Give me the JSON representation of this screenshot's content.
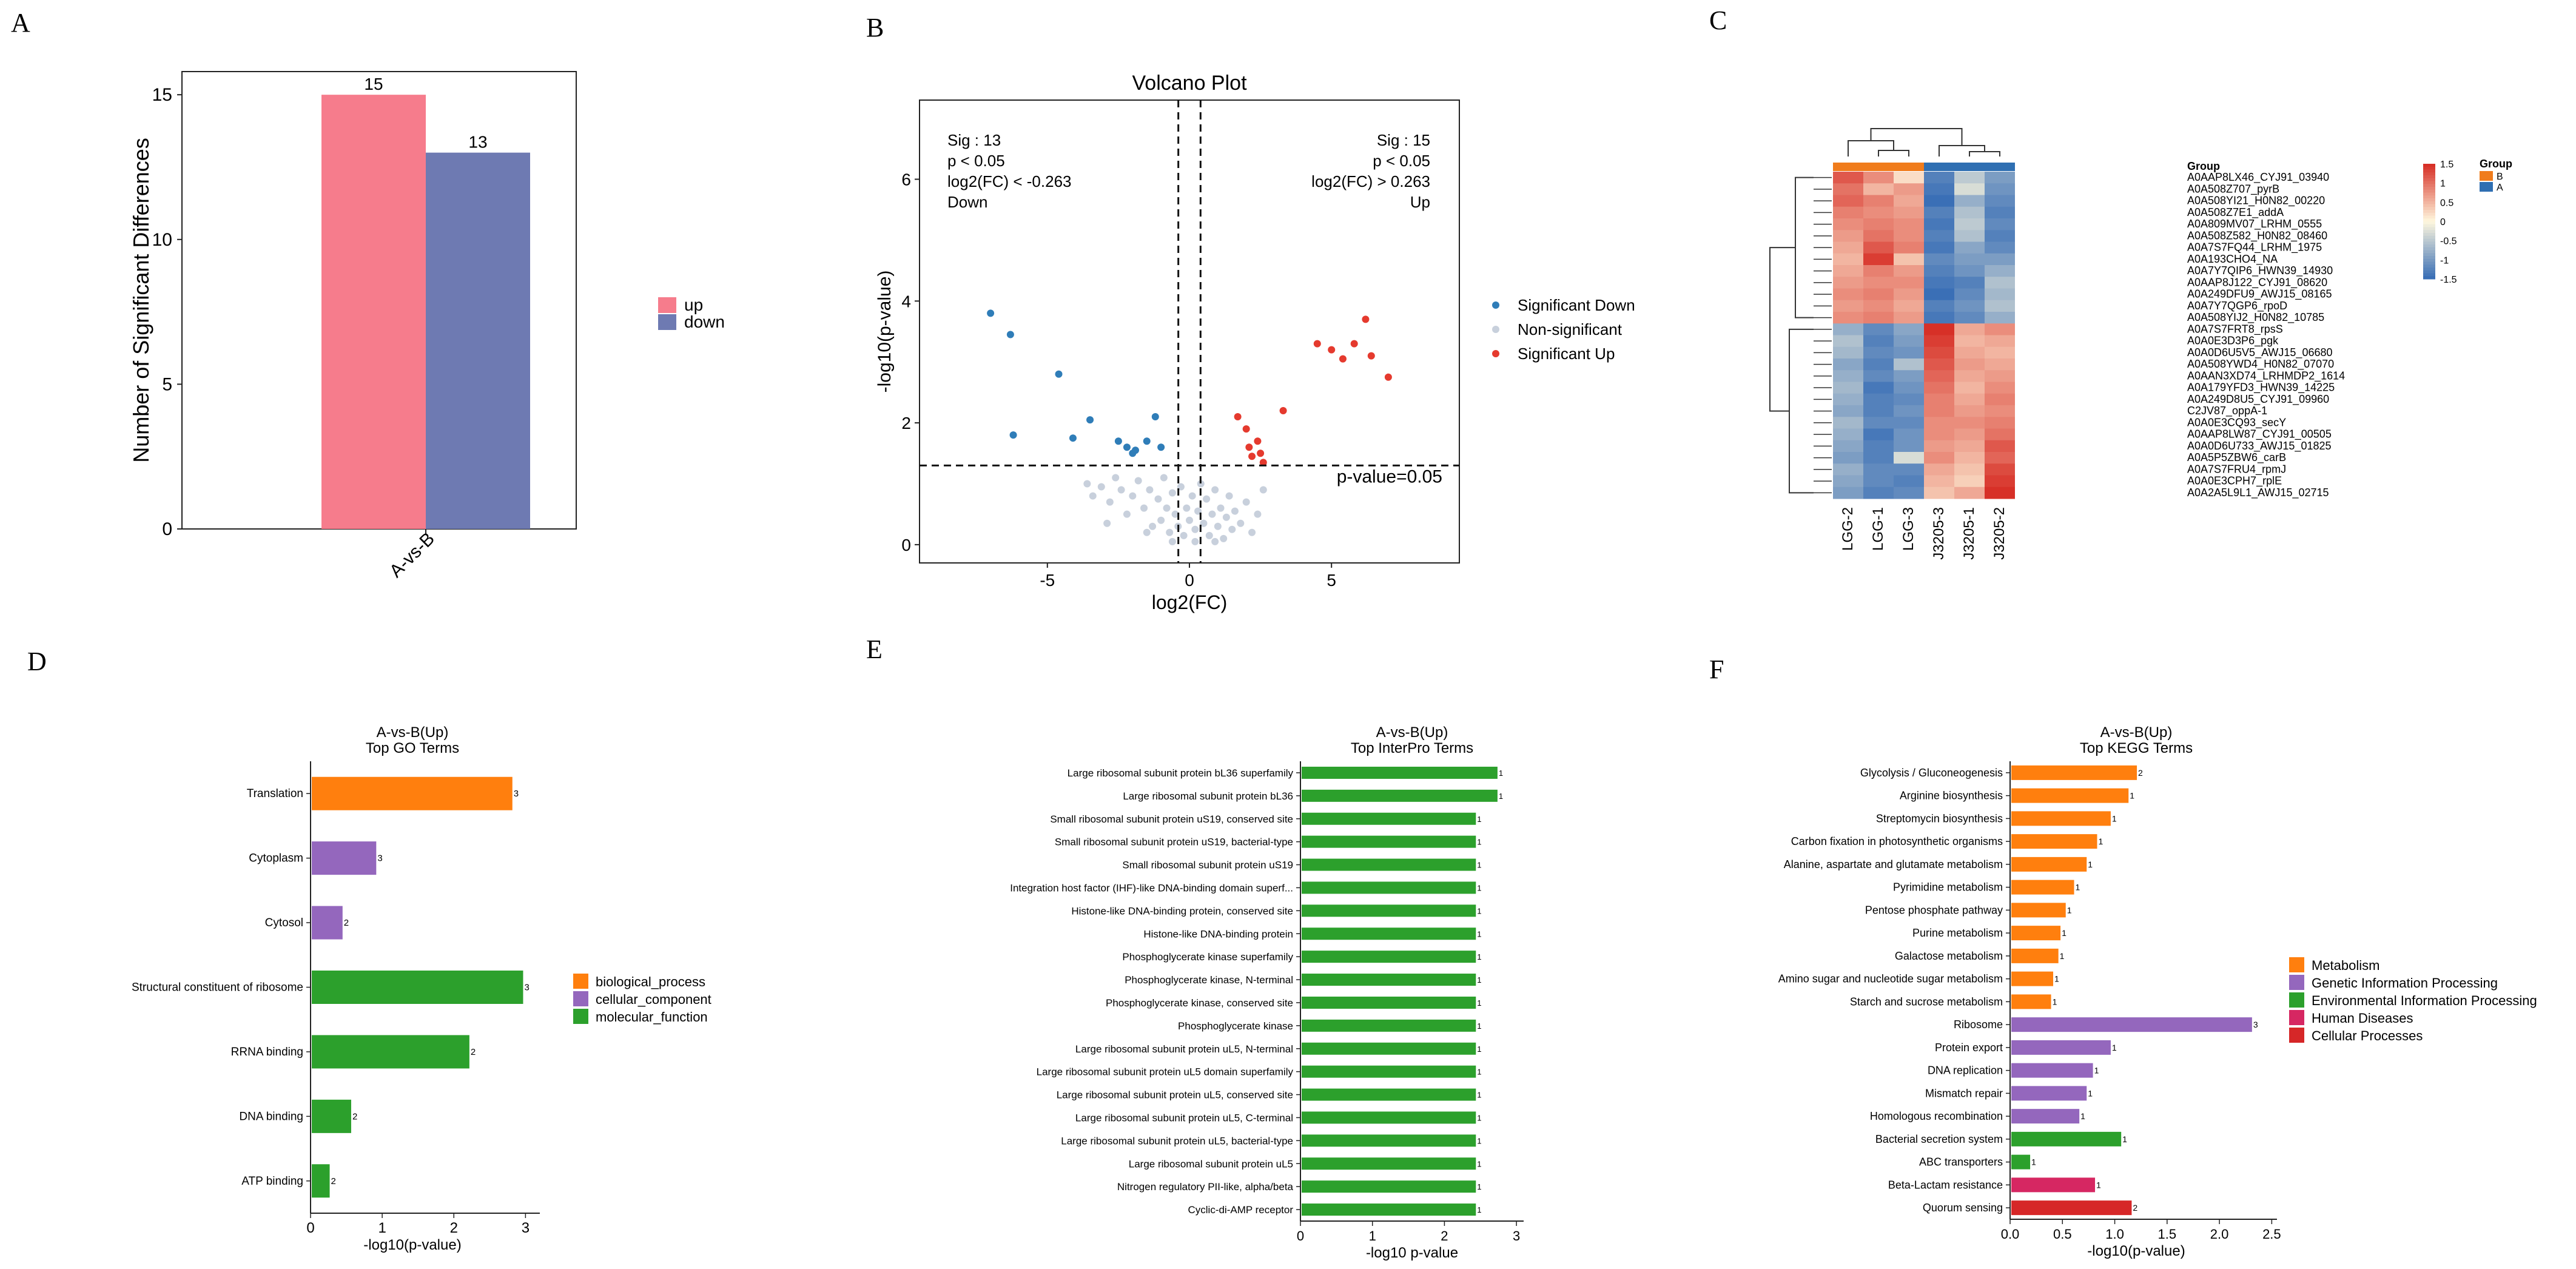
{
  "colors": {
    "up": "#F67C8C",
    "down": "#6E7AB2",
    "sig_down": "#2F7DB8",
    "non_sig": "#C8D0DC",
    "sig_up": "#E53A2E",
    "bp": "#FF7F0E",
    "cc": "#9467BD",
    "mf": "#2CA02C",
    "cat_metabolism": "#FF7F0E",
    "cat_genetic": "#9467BD",
    "cat_env": "#2CA02C",
    "cat_human": "#D62762",
    "cat_cellular": "#D62728",
    "heat_low": "#3A6FB6",
    "heat_mid": "#FFF8DE",
    "heat_high": "#D73027",
    "group_B": "#F07C1C",
    "group_A": "#2F6FB2"
  },
  "chart_data": [
    {
      "panel": "A",
      "type": "bar",
      "categories": [
        "A-vs-B"
      ],
      "series": [
        {
          "name": "up",
          "values": [
            15
          ]
        },
        {
          "name": "down",
          "values": [
            13
          ]
        }
      ],
      "ylabel": "Number of Significant Differences",
      "ylim": [
        0,
        15.8
      ],
      "yticks": [
        "0",
        "5",
        "10",
        "15"
      ],
      "legend": [
        "up",
        "down"
      ]
    },
    {
      "panel": "B",
      "type": "scatter",
      "title": "Volcano Plot",
      "xlabel": "log2(FC)",
      "ylabel": "-log10(p-value)",
      "xlim": [
        -9.5,
        9.5
      ],
      "ylim": [
        -0.3,
        7.3
      ],
      "xticks": [
        "-5",
        "0",
        "5"
      ],
      "yticks": [
        "0",
        "2",
        "4",
        "6"
      ],
      "threshold_label": "p-value=0.05",
      "annot_left": [
        "Sig : 13",
        "p < 0.05",
        "log2(FC) < -0.263",
        "Down"
      ],
      "annot_right": [
        "Sig : 15",
        "p < 0.05",
        "log2(FC) > 0.263",
        "Up"
      ],
      "legend": [
        "Significant Down",
        "Non-significant",
        "Significant Up"
      ],
      "down_points": [
        [
          -7,
          3.8
        ],
        [
          -6.3,
          3.45
        ],
        [
          -6.2,
          1.8
        ],
        [
          -4.6,
          2.8
        ],
        [
          -4.1,
          1.75
        ],
        [
          -3.5,
          2.05
        ],
        [
          -2.5,
          1.7
        ],
        [
          -2.2,
          1.6
        ],
        [
          -2.0,
          1.5
        ],
        [
          -1.9,
          1.55
        ],
        [
          -1.5,
          1.7
        ],
        [
          -1.2,
          2.1
        ],
        [
          -1.0,
          1.6
        ]
      ],
      "up_points": [
        [
          1.7,
          2.1
        ],
        [
          2.0,
          1.9
        ],
        [
          2.1,
          1.6
        ],
        [
          2.2,
          1.45
        ],
        [
          2.4,
          1.7
        ],
        [
          2.5,
          1.5
        ],
        [
          2.6,
          1.35
        ],
        [
          3.3,
          2.2
        ],
        [
          4.5,
          3.3
        ],
        [
          5.0,
          3.2
        ],
        [
          5.4,
          3.05
        ],
        [
          5.8,
          3.3
        ],
        [
          6.2,
          3.7
        ],
        [
          6.4,
          3.1
        ],
        [
          7.0,
          2.75
        ]
      ],
      "non_points": [
        [
          -3.6,
          1.0
        ],
        [
          -3.4,
          0.8
        ],
        [
          -3.1,
          0.95
        ],
        [
          -2.8,
          0.7
        ],
        [
          -2.6,
          1.1
        ],
        [
          -2.4,
          0.9
        ],
        [
          -2.2,
          0.5
        ],
        [
          -2.0,
          0.8
        ],
        [
          -1.8,
          1.05
        ],
        [
          -1.6,
          0.6
        ],
        [
          -1.4,
          0.9
        ],
        [
          -1.3,
          0.3
        ],
        [
          -1.1,
          0.75
        ],
        [
          -1.0,
          0.4
        ],
        [
          -0.9,
          1.1
        ],
        [
          -0.8,
          0.6
        ],
        [
          -0.7,
          0.2
        ],
        [
          -0.6,
          0.85
        ],
        [
          -0.5,
          0.5
        ],
        [
          -0.4,
          0.3
        ],
        [
          -0.3,
          0.95
        ],
        [
          -0.2,
          0.15
        ],
        [
          -0.1,
          0.6
        ],
        [
          0.0,
          0.4
        ],
        [
          0.1,
          0.8
        ],
        [
          0.2,
          0.25
        ],
        [
          0.3,
          0.55
        ],
        [
          0.4,
          1.0
        ],
        [
          0.5,
          0.35
        ],
        [
          0.6,
          0.75
        ],
        [
          0.7,
          0.15
        ],
        [
          0.8,
          0.5
        ],
        [
          0.9,
          0.9
        ],
        [
          1.0,
          0.3
        ],
        [
          1.1,
          0.6
        ],
        [
          1.2,
          0.1
        ],
        [
          1.3,
          0.45
        ],
        [
          1.4,
          0.8
        ],
        [
          1.5,
          0.25
        ],
        [
          1.6,
          0.55
        ],
        [
          1.8,
          0.35
        ],
        [
          2.0,
          0.7
        ],
        [
          2.2,
          0.2
        ],
        [
          2.4,
          0.5
        ],
        [
          2.6,
          0.9
        ],
        [
          -2.9,
          0.35
        ],
        [
          -1.5,
          0.2
        ],
        [
          0.2,
          0.05
        ],
        [
          -0.6,
          0.05
        ],
        [
          0.9,
          0.05
        ]
      ]
    },
    {
      "panel": "C",
      "type": "heatmap",
      "columns": [
        "LGG-2",
        "LGG-1",
        "LGG-3",
        "J3205-3",
        "J3205-1",
        "J3205-2"
      ],
      "column_groups": [
        "B",
        "B",
        "B",
        "A",
        "A",
        "A"
      ],
      "group_row_label": "Group",
      "rows": [
        "A0AAP8LX46_CYJ91_03940",
        "A0A508Z707_pyrB",
        "A0A508YI21_H0N82_00220",
        "A0A508Z7E1_addA",
        "A0A809MV07_LRHM_0555",
        "A0A508Z582_H0N82_08460",
        "A0A7S7FQ44_LRHM_1975",
        "A0A193CHO4_NA",
        "A0A7Y7QIP6_HWN39_14930",
        "A0AAP8J122_CYJ91_08620",
        "A0A249DFU9_AWJ15_08165",
        "A0A7Y7QGP6_rpoD",
        "A0A508YIJ2_H0N82_10785",
        "A0A7S7FRT8_rpsS",
        "A0A0E3D3P6_pgk",
        "A0A0D6U5V5_AWJ15_06680",
        "A0A508YWD4_H0N82_07070",
        "A0AAN3XD74_LRHMDP2_1614",
        "A0A179YFD3_HWN39_14225",
        "A0A249D8U5_CYJ91_09960",
        "C2JV87_oppA-1",
        "A0A0E3CQ93_secY",
        "A0AAP8LW87_CYJ91_00505",
        "A0A0D6U733_AWJ15_01825",
        "A0A5P5ZBW6_carB",
        "A0A7S7FRU4_rpmJ",
        "A0A0E3CPH7_rplE",
        "A0A2A5L9L1_AWJ15_02715"
      ],
      "values": [
        [
          1.2,
          0.8,
          0.2,
          -1.3,
          -0.5,
          -1.0
        ],
        [
          1.0,
          0.5,
          0.7,
          -1.4,
          -0.3,
          -1.1
        ],
        [
          1.1,
          0.9,
          0.6,
          -1.5,
          -0.8,
          -1.2
        ],
        [
          0.9,
          0.8,
          0.7,
          -1.3,
          -0.6,
          -1.3
        ],
        [
          0.8,
          0.9,
          0.8,
          -1.4,
          -0.5,
          -1.2
        ],
        [
          0.7,
          1.0,
          0.8,
          -1.3,
          -0.6,
          -1.3
        ],
        [
          0.6,
          1.2,
          0.9,
          -1.4,
          -0.9,
          -1.2
        ],
        [
          0.5,
          1.4,
          0.4,
          -1.2,
          -1.0,
          -1.0
        ],
        [
          0.6,
          0.9,
          0.7,
          -1.3,
          -1.1,
          -0.8
        ],
        [
          0.7,
          0.8,
          0.8,
          -1.4,
          -1.3,
          -0.6
        ],
        [
          0.8,
          0.9,
          0.7,
          -1.5,
          -1.2,
          -0.7
        ],
        [
          0.7,
          0.8,
          0.6,
          -1.3,
          -1.1,
          -0.6
        ],
        [
          0.8,
          0.9,
          0.7,
          -1.4,
          -1.2,
          -0.8
        ],
        [
          -0.8,
          -1.2,
          -0.9,
          1.5,
          0.6,
          0.8
        ],
        [
          -0.6,
          -1.3,
          -1.0,
          1.4,
          0.5,
          0.6
        ],
        [
          -0.7,
          -1.2,
          -1.1,
          1.3,
          0.6,
          0.5
        ],
        [
          -0.9,
          -1.3,
          -0.6,
          1.2,
          0.7,
          0.6
        ],
        [
          -0.8,
          -1.2,
          -1.0,
          1.1,
          0.6,
          0.7
        ],
        [
          -0.7,
          -1.4,
          -1.1,
          1.0,
          0.5,
          0.8
        ],
        [
          -0.8,
          -1.3,
          -1.2,
          0.9,
          0.6,
          0.9
        ],
        [
          -0.9,
          -1.3,
          -1.1,
          0.9,
          0.7,
          0.8
        ],
        [
          -0.7,
          -1.2,
          -1.2,
          0.8,
          0.8,
          0.9
        ],
        [
          -0.8,
          -1.4,
          -1.1,
          0.8,
          0.7,
          1.0
        ],
        [
          -0.9,
          -1.3,
          -1.1,
          0.7,
          0.6,
          1.2
        ],
        [
          -1.0,
          -1.3,
          -0.3,
          0.8,
          0.5,
          1.1
        ],
        [
          -0.8,
          -1.2,
          -1.2,
          0.6,
          0.4,
          1.3
        ],
        [
          -0.9,
          -1.2,
          -1.3,
          0.5,
          0.3,
          1.4
        ],
        [
          -1.0,
          -1.3,
          -1.2,
          0.4,
          0.6,
          1.5
        ]
      ],
      "color_scale_ticks": [
        "1.5",
        "1",
        "0.5",
        "0",
        "-0.5",
        "-1",
        "-1.5"
      ],
      "legend_title": "Group",
      "legend_items": [
        "B",
        "A"
      ]
    },
    {
      "panel": "D",
      "type": "bar",
      "title": "A-vs-B(Up)",
      "subtitle": "Top GO Terms",
      "xlabel": "-log10(p-value)",
      "xlim": [
        0,
        3.2
      ],
      "xticks": [
        "0",
        "1",
        "2",
        "3"
      ],
      "items": [
        {
          "term": "Translation",
          "value": 2.8,
          "count": "3",
          "cat": "bp"
        },
        {
          "term": "Cytoplasm",
          "value": 0.9,
          "count": "3",
          "cat": "cc"
        },
        {
          "term": "Cytosol",
          "value": 0.43,
          "count": "2",
          "cat": "cc"
        },
        {
          "term": "Structural constituent of ribosome",
          "value": 2.95,
          "count": "3",
          "cat": "mf"
        },
        {
          "term": "RRNA binding",
          "value": 2.2,
          "count": "2",
          "cat": "mf"
        },
        {
          "term": "DNA binding",
          "value": 0.55,
          "count": "2",
          "cat": "mf"
        },
        {
          "term": "ATP binding",
          "value": 0.25,
          "count": "2",
          "cat": "mf"
        }
      ],
      "legend": [
        {
          "label": "biological_process",
          "cat": "bp"
        },
        {
          "label": "cellular_component",
          "cat": "cc"
        },
        {
          "label": "molecular_function",
          "cat": "mf"
        }
      ]
    },
    {
      "panel": "E",
      "type": "bar",
      "title": "A-vs-B(Up)",
      "subtitle": "Top InterPro Terms",
      "xlabel": "-log10 p-value",
      "xlim": [
        0,
        3.1
      ],
      "xticks": [
        "0",
        "1",
        "2",
        "3"
      ],
      "items": [
        {
          "term": "Large ribosomal subunit protein bL36 superfamily",
          "value": 2.72,
          "count": "1"
        },
        {
          "term": "Large ribosomal subunit protein bL36",
          "value": 2.72,
          "count": "1"
        },
        {
          "term": "Small ribosomal subunit protein uS19, conserved site",
          "value": 2.42,
          "count": "1"
        },
        {
          "term": "Small ribosomal subunit protein uS19, bacterial-type",
          "value": 2.42,
          "count": "1"
        },
        {
          "term": "Small ribosomal subunit protein uS19",
          "value": 2.42,
          "count": "1"
        },
        {
          "term": "Integration host factor (IHF)-like DNA-binding domain superf...",
          "value": 2.42,
          "count": "1"
        },
        {
          "term": "Histone-like DNA-binding protein, conserved site",
          "value": 2.42,
          "count": "1"
        },
        {
          "term": "Histone-like DNA-binding protein",
          "value": 2.42,
          "count": "1"
        },
        {
          "term": "Phosphoglycerate kinase superfamily",
          "value": 2.42,
          "count": "1"
        },
        {
          "term": "Phosphoglycerate kinase, N-terminal",
          "value": 2.42,
          "count": "1"
        },
        {
          "term": "Phosphoglycerate kinase, conserved site",
          "value": 2.42,
          "count": "1"
        },
        {
          "term": "Phosphoglycerate kinase",
          "value": 2.42,
          "count": "1"
        },
        {
          "term": "Large ribosomal subunit protein uL5, N-terminal",
          "value": 2.42,
          "count": "1"
        },
        {
          "term": "Large ribosomal subunit protein uL5 domain superfamily",
          "value": 2.42,
          "count": "1"
        },
        {
          "term": "Large ribosomal subunit protein uL5, conserved site",
          "value": 2.42,
          "count": "1"
        },
        {
          "term": "Large ribosomal subunit protein uL5, C-terminal",
          "value": 2.42,
          "count": "1"
        },
        {
          "term": "Large ribosomal subunit protein uL5, bacterial-type",
          "value": 2.42,
          "count": "1"
        },
        {
          "term": "Large ribosomal subunit protein uL5",
          "value": 2.42,
          "count": "1"
        },
        {
          "term": "Nitrogen regulatory PII-like, alpha/beta",
          "value": 2.42,
          "count": "1"
        },
        {
          "term": "Cyclic-di-AMP receptor",
          "value": 2.42,
          "count": "1"
        }
      ]
    },
    {
      "panel": "F",
      "type": "bar",
      "title": "A-vs-B(Up)",
      "subtitle": "Top KEGG Terms",
      "xlabel": "-log10(p-value)",
      "xlim": [
        0,
        2.55
      ],
      "xticks": [
        "0.0",
        "0.5",
        "1.0",
        "1.5",
        "2.0",
        "2.5"
      ],
      "items": [
        {
          "term": "Glycolysis / Gluconeogenesis",
          "value": 1.2,
          "count": "2",
          "cat": "cat_metabolism"
        },
        {
          "term": "Arginine biosynthesis",
          "value": 1.12,
          "count": "1",
          "cat": "cat_metabolism"
        },
        {
          "term": "Streptomycin biosynthesis",
          "value": 0.95,
          "count": "1",
          "cat": "cat_metabolism"
        },
        {
          "term": "Carbon fixation in photosynthetic organisms",
          "value": 0.82,
          "count": "1",
          "cat": "cat_metabolism"
        },
        {
          "term": "Alanine, aspartate and glutamate metabolism",
          "value": 0.72,
          "count": "1",
          "cat": "cat_metabolism"
        },
        {
          "term": "Pyrimidine metabolism",
          "value": 0.6,
          "count": "1",
          "cat": "cat_metabolism"
        },
        {
          "term": "Pentose phosphate pathway",
          "value": 0.52,
          "count": "1",
          "cat": "cat_metabolism"
        },
        {
          "term": "Purine metabolism",
          "value": 0.47,
          "count": "1",
          "cat": "cat_metabolism"
        },
        {
          "term": "Galactose metabolism",
          "value": 0.45,
          "count": "1",
          "cat": "cat_metabolism"
        },
        {
          "term": "Amino sugar and nucleotide sugar metabolism",
          "value": 0.4,
          "count": "1",
          "cat": "cat_metabolism"
        },
        {
          "term": "Starch and sucrose metabolism",
          "value": 0.38,
          "count": "1",
          "cat": "cat_metabolism"
        },
        {
          "term": "Ribosome",
          "value": 2.3,
          "count": "3",
          "cat": "cat_genetic"
        },
        {
          "term": "Protein export",
          "value": 0.95,
          "count": "1",
          "cat": "cat_genetic"
        },
        {
          "term": "DNA replication",
          "value": 0.78,
          "count": "1",
          "cat": "cat_genetic"
        },
        {
          "term": "Mismatch repair",
          "value": 0.72,
          "count": "1",
          "cat": "cat_genetic"
        },
        {
          "term": "Homologous recombination",
          "value": 0.65,
          "count": "1",
          "cat": "cat_genetic"
        },
        {
          "term": "Bacterial secretion system",
          "value": 1.05,
          "count": "1",
          "cat": "cat_env"
        },
        {
          "term": "ABC transporters",
          "value": 0.18,
          "count": "1",
          "cat": "cat_env"
        },
        {
          "term": "Beta-Lactam resistance",
          "value": 0.8,
          "count": "1",
          "cat": "cat_human"
        },
        {
          "term": "Quorum sensing",
          "value": 1.15,
          "count": "2",
          "cat": "cat_cellular"
        }
      ],
      "legend": [
        {
          "label": "Metabolism",
          "cat": "cat_metabolism"
        },
        {
          "label": "Genetic Information Processing",
          "cat": "cat_genetic"
        },
        {
          "label": "Environmental Information Processing",
          "cat": "cat_env"
        },
        {
          "label": "Human Diseases",
          "cat": "cat_human"
        },
        {
          "label": "Cellular Processes",
          "cat": "cat_cellular"
        }
      ]
    }
  ],
  "panels": {
    "a": "A",
    "b": "B",
    "c": "C",
    "d": "D",
    "e": "E",
    "f": "F"
  }
}
